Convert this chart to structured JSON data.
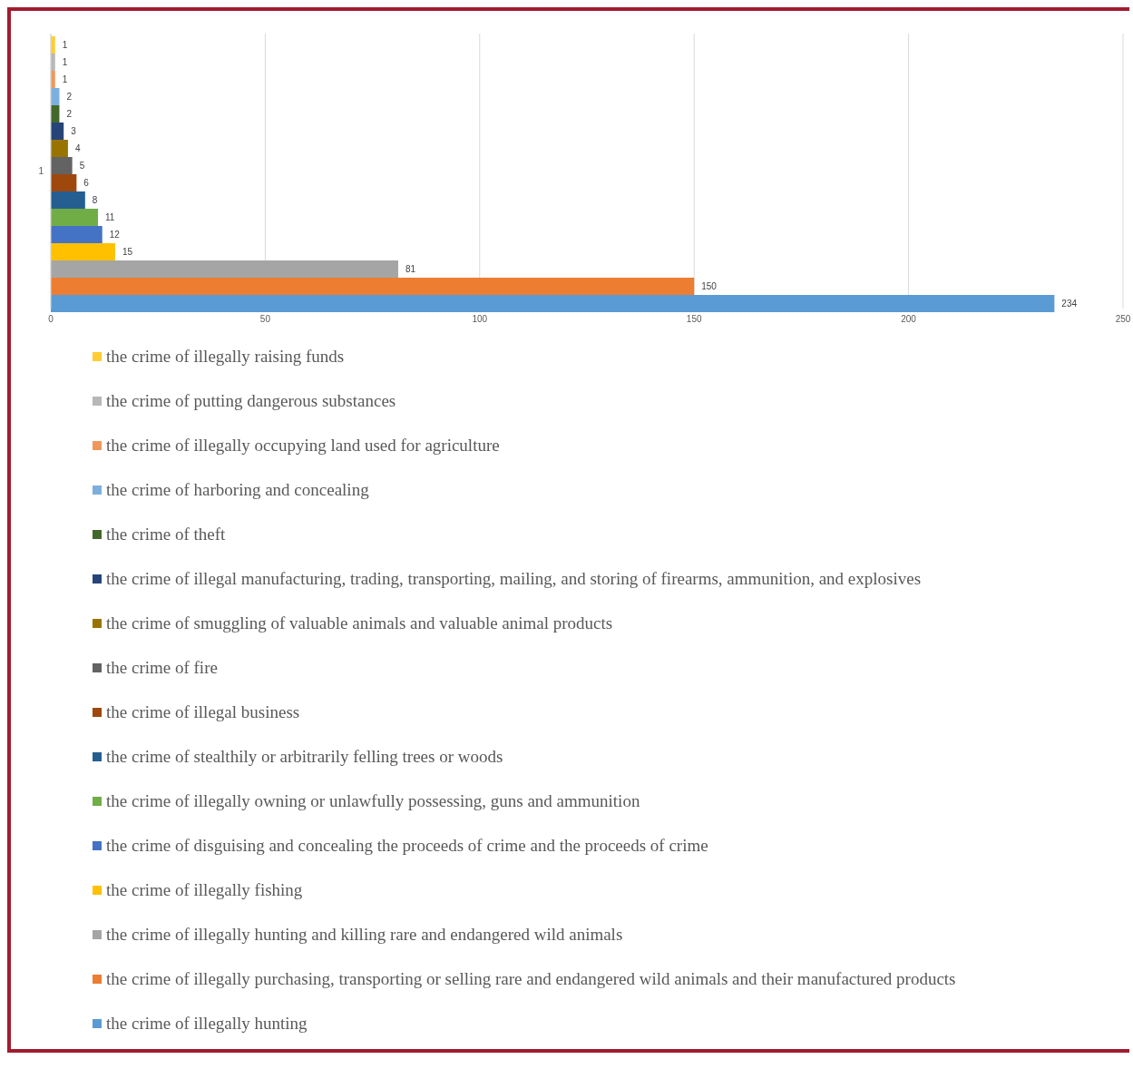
{
  "chart_data": {
    "type": "bar",
    "orientation": "horizontal",
    "categories": [
      "1"
    ],
    "series": [
      {
        "name": "the crime of illegally raising funds",
        "color": "#ffcd33",
        "values": [
          1
        ]
      },
      {
        "name": "the crime of putting dangerous substances",
        "color": "#b7b7b7",
        "values": [
          1
        ]
      },
      {
        "name": "the crime of illegally occupying land used for agriculture",
        "color": "#f1975a",
        "values": [
          1
        ]
      },
      {
        "name": "the crime of harboring and concealing",
        "color": "#7cafdd",
        "values": [
          2
        ]
      },
      {
        "name": "the crime of theft",
        "color": "#43682b",
        "values": [
          2
        ]
      },
      {
        "name": "the crime of illegal manufacturing, trading, transporting, mailing, and storing of firearms, ammunition, and explosives",
        "color": "#264478",
        "values": [
          3
        ]
      },
      {
        "name": "the crime of smuggling of valuable animals and valuable animal products",
        "color": "#997300",
        "values": [
          4
        ]
      },
      {
        "name": "the crime of fire",
        "color": "#636363",
        "values": [
          5
        ]
      },
      {
        "name": "the crime of illegal business",
        "color": "#9e480e",
        "values": [
          6
        ]
      },
      {
        "name": "the crime of stealthily or arbitrarily felling trees or woods",
        "color": "#255e91",
        "values": [
          8
        ]
      },
      {
        "name": "the crime of illegally owning or unlawfully possessing, guns and ammunition",
        "color": "#70ad47",
        "values": [
          11
        ]
      },
      {
        "name": "the crime of disguising and concealing the proceeds of crime and the proceeds of crime",
        "color": "#4472c4",
        "values": [
          12
        ]
      },
      {
        "name": "the crime of illegally fishing",
        "color": "#ffc000",
        "values": [
          15
        ]
      },
      {
        "name": "the crime of illegally hunting and killing rare and endangered wild animals",
        "color": "#a5a5a5",
        "values": [
          81
        ]
      },
      {
        "name": "the crime of illegally purchasing, transporting or selling rare and endangered wild animals and their manufactured products",
        "color": "#ed7d31",
        "values": [
          150
        ]
      },
      {
        "name": "the crime of illegally hunting",
        "color": "#5b9bd5",
        "values": [
          234
        ]
      }
    ],
    "xlim": [
      0,
      250
    ],
    "xticks": [
      0,
      50,
      100,
      150,
      200,
      250
    ],
    "grid": "x",
    "data_labels": true,
    "legend": "bottom"
  }
}
